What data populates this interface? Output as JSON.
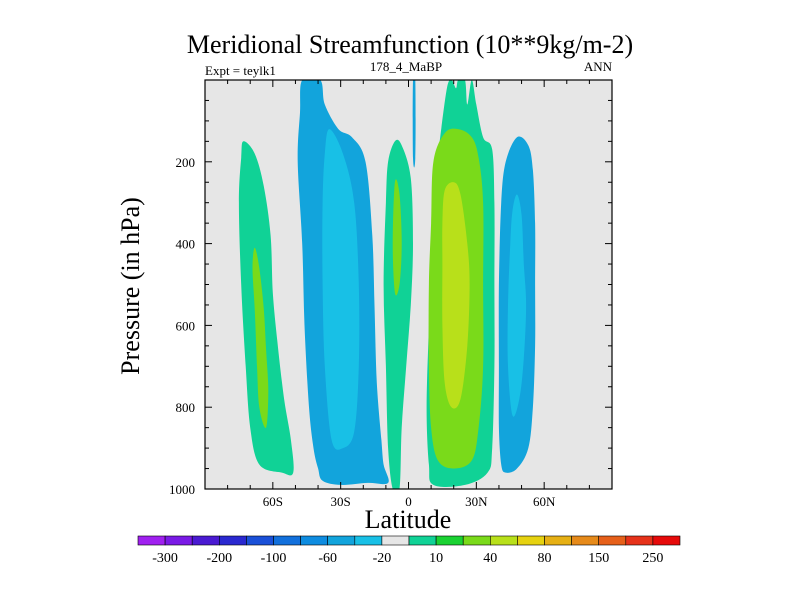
{
  "chart_data": {
    "type": "contour",
    "title": "Meridional Streamfunction (10**9kg/m-2)",
    "left_label": "Expt = teylk1",
    "center_label": "178_4_MaBP",
    "right_label": "ANN",
    "xlabel": "Latitude",
    "ylabel": "Pressure (in hPa)",
    "xlim": [
      -90,
      90
    ],
    "ylim": [
      1000,
      0
    ],
    "x_ticks": [
      {
        "value": -60,
        "label": "60S"
      },
      {
        "value": -30,
        "label": "30S"
      },
      {
        "value": 0,
        "label": "0"
      },
      {
        "value": 30,
        "label": "30N"
      },
      {
        "value": 60,
        "label": "60N"
      }
    ],
    "y_ticks": [
      {
        "value": 200,
        "label": "200"
      },
      {
        "value": 400,
        "label": "400"
      },
      {
        "value": 600,
        "label": "600"
      },
      {
        "value": 800,
        "label": "800"
      },
      {
        "value": 1000,
        "label": "1000"
      }
    ],
    "background_color": "#e6e6e6",
    "colorbar": {
      "colors": [
        "#a020f0",
        "#7a1ae6",
        "#4a1ad2",
        "#2a28d0",
        "#1a50d8",
        "#1270dc",
        "#0e8ce0",
        "#12a4dc",
        "#18c0e6",
        "#e6e6e6",
        "#10d296",
        "#1ad232",
        "#7ada1a",
        "#b8e01a",
        "#e6d210",
        "#e6b014",
        "#e68a1a",
        "#e6601a",
        "#e6321a",
        "#e60a0a"
      ],
      "labels": [
        "-300",
        "-200",
        "-100",
        "-60",
        "-20",
        "10",
        "40",
        "80",
        "150",
        "250"
      ]
    },
    "level_colors": {
      "-2": "#18c0e6",
      "-1": "#12a4dc",
      "1": "#10d296",
      "2": "#7ada1a",
      "3": "#b8e01a"
    },
    "cells": [
      {
        "name": "south-polar-positive-cell",
        "level": 1,
        "outline": [
          [
            -73,
            150
          ],
          [
            -68,
            180
          ],
          [
            -64,
            260
          ],
          [
            -61,
            380
          ],
          [
            -60,
            520
          ],
          [
            -58,
            640
          ],
          [
            -55,
            780
          ],
          [
            -52,
            880
          ],
          [
            -51,
            960
          ],
          [
            -56,
            960
          ],
          [
            -66,
            940
          ],
          [
            -70,
            850
          ],
          [
            -72,
            700
          ],
          [
            -74,
            500
          ],
          [
            -75,
            300
          ],
          [
            -74,
            190
          ]
        ]
      },
      {
        "name": "south-polar-positive-core",
        "level": 2,
        "outline": [
          [
            -68,
            410
          ],
          [
            -66,
            460
          ],
          [
            -64,
            560
          ],
          [
            -63,
            660
          ],
          [
            -62,
            760
          ],
          [
            -63,
            850
          ],
          [
            -66,
            800
          ],
          [
            -67,
            700
          ],
          [
            -68,
            560
          ],
          [
            -69,
            460
          ]
        ]
      },
      {
        "name": "southern-hadley-cell",
        "level": -1,
        "outline": [
          [
            -47,
            0
          ],
          [
            -39,
            0
          ],
          [
            -37,
            60
          ],
          [
            -31,
            120
          ],
          [
            -25,
            140
          ],
          [
            -19,
            200
          ],
          [
            -16,
            380
          ],
          [
            -15,
            560
          ],
          [
            -14,
            740
          ],
          [
            -12,
            880
          ],
          [
            -11,
            940
          ],
          [
            -9,
            985
          ],
          [
            -18,
            985
          ],
          [
            -30,
            990
          ],
          [
            -38,
            980
          ],
          [
            -40,
            950
          ],
          [
            -42,
            900
          ],
          [
            -44,
            800
          ],
          [
            -46,
            600
          ],
          [
            -47,
            400
          ],
          [
            -49,
            200
          ],
          [
            -48,
            80
          ]
        ]
      },
      {
        "name": "southern-hadley-core",
        "level": -2,
        "outline": [
          [
            -35,
            120
          ],
          [
            -29,
            180
          ],
          [
            -24,
            300
          ],
          [
            -22,
            500
          ],
          [
            -22,
            700
          ],
          [
            -24,
            860
          ],
          [
            -29,
            900
          ],
          [
            -34,
            880
          ],
          [
            -37,
            700
          ],
          [
            -38,
            500
          ],
          [
            -38,
            300
          ],
          [
            -37,
            180
          ]
        ]
      },
      {
        "name": "equatorial-positive-cell",
        "level": 1,
        "outline": [
          [
            -6,
            150
          ],
          [
            -3,
            160
          ],
          [
            1,
            240
          ],
          [
            2,
            400
          ],
          [
            1,
            550
          ],
          [
            -1,
            700
          ],
          [
            -3,
            850
          ],
          [
            -4,
            1000
          ],
          [
            -7,
            1000
          ],
          [
            -9,
            900
          ],
          [
            -10,
            700
          ],
          [
            -11,
            500
          ],
          [
            -10,
            300
          ],
          [
            -9,
            200
          ]
        ]
      },
      {
        "name": "equatorial-positive-core",
        "level": 2,
        "outline": [
          [
            -6,
            250
          ],
          [
            -4,
            280
          ],
          [
            -3,
            400
          ],
          [
            -4,
            500
          ],
          [
            -6,
            520
          ],
          [
            -7,
            400
          ]
        ]
      },
      {
        "name": "equatorial-negative-jet",
        "level": -1,
        "outline": [
          [
            2,
            0
          ],
          [
            3,
            0
          ],
          [
            3,
            190
          ],
          [
            2,
            190
          ]
        ]
      },
      {
        "name": "northern-hadley-cell",
        "level": 1,
        "outline": [
          [
            12,
            230
          ],
          [
            14,
            140
          ],
          [
            17,
            20
          ],
          [
            19,
            0
          ],
          [
            21,
            20
          ],
          [
            22,
            0
          ],
          [
            25,
            0
          ],
          [
            26,
            60
          ],
          [
            28,
            0
          ],
          [
            30,
            60
          ],
          [
            33,
            140
          ],
          [
            37,
            170
          ],
          [
            38,
            300
          ],
          [
            38,
            500
          ],
          [
            38,
            700
          ],
          [
            37,
            900
          ],
          [
            35,
            960
          ],
          [
            25,
            990
          ],
          [
            11,
            990
          ],
          [
            9,
            940
          ],
          [
            8,
            800
          ],
          [
            9,
            600
          ],
          [
            10,
            400
          ]
        ]
      },
      {
        "name": "northern-hadley-core",
        "level": 2,
        "outline": [
          [
            11,
            200
          ],
          [
            16,
            130
          ],
          [
            22,
            120
          ],
          [
            28,
            140
          ],
          [
            31,
            190
          ],
          [
            33,
            300
          ],
          [
            33,
            500
          ],
          [
            33,
            700
          ],
          [
            31,
            850
          ],
          [
            28,
            930
          ],
          [
            20,
            950
          ],
          [
            13,
            930
          ],
          [
            10,
            850
          ],
          [
            9,
            700
          ],
          [
            9,
            500
          ],
          [
            10,
            350
          ]
        ]
      },
      {
        "name": "northern-hadley-max",
        "level": 3,
        "outline": [
          [
            16,
            270
          ],
          [
            20,
            250
          ],
          [
            23,
            280
          ],
          [
            26,
            400
          ],
          [
            27,
            500
          ],
          [
            26,
            650
          ],
          [
            23,
            780
          ],
          [
            19,
            800
          ],
          [
            16,
            740
          ],
          [
            15,
            600
          ],
          [
            15,
            450
          ],
          [
            15,
            350
          ]
        ]
      },
      {
        "name": "north-polar-negative-cell",
        "level": -1,
        "outline": [
          [
            48,
            140
          ],
          [
            53,
            160
          ],
          [
            55,
            220
          ],
          [
            56,
            350
          ],
          [
            56,
            500
          ],
          [
            56,
            650
          ],
          [
            55,
            800
          ],
          [
            53,
            900
          ],
          [
            48,
            950
          ],
          [
            43,
            960
          ],
          [
            41,
            940
          ],
          [
            40,
            850
          ],
          [
            40,
            700
          ],
          [
            40,
            500
          ],
          [
            41,
            300
          ],
          [
            43,
            200
          ]
        ]
      },
      {
        "name": "north-polar-negative-core",
        "level": -2,
        "outline": [
          [
            48,
            280
          ],
          [
            50,
            330
          ],
          [
            51,
            450
          ],
          [
            52,
            550
          ],
          [
            51,
            680
          ],
          [
            49,
            780
          ],
          [
            46,
            820
          ],
          [
            44,
            700
          ],
          [
            44,
            550
          ],
          [
            45,
            400
          ],
          [
            46,
            320
          ]
        ]
      }
    ]
  }
}
